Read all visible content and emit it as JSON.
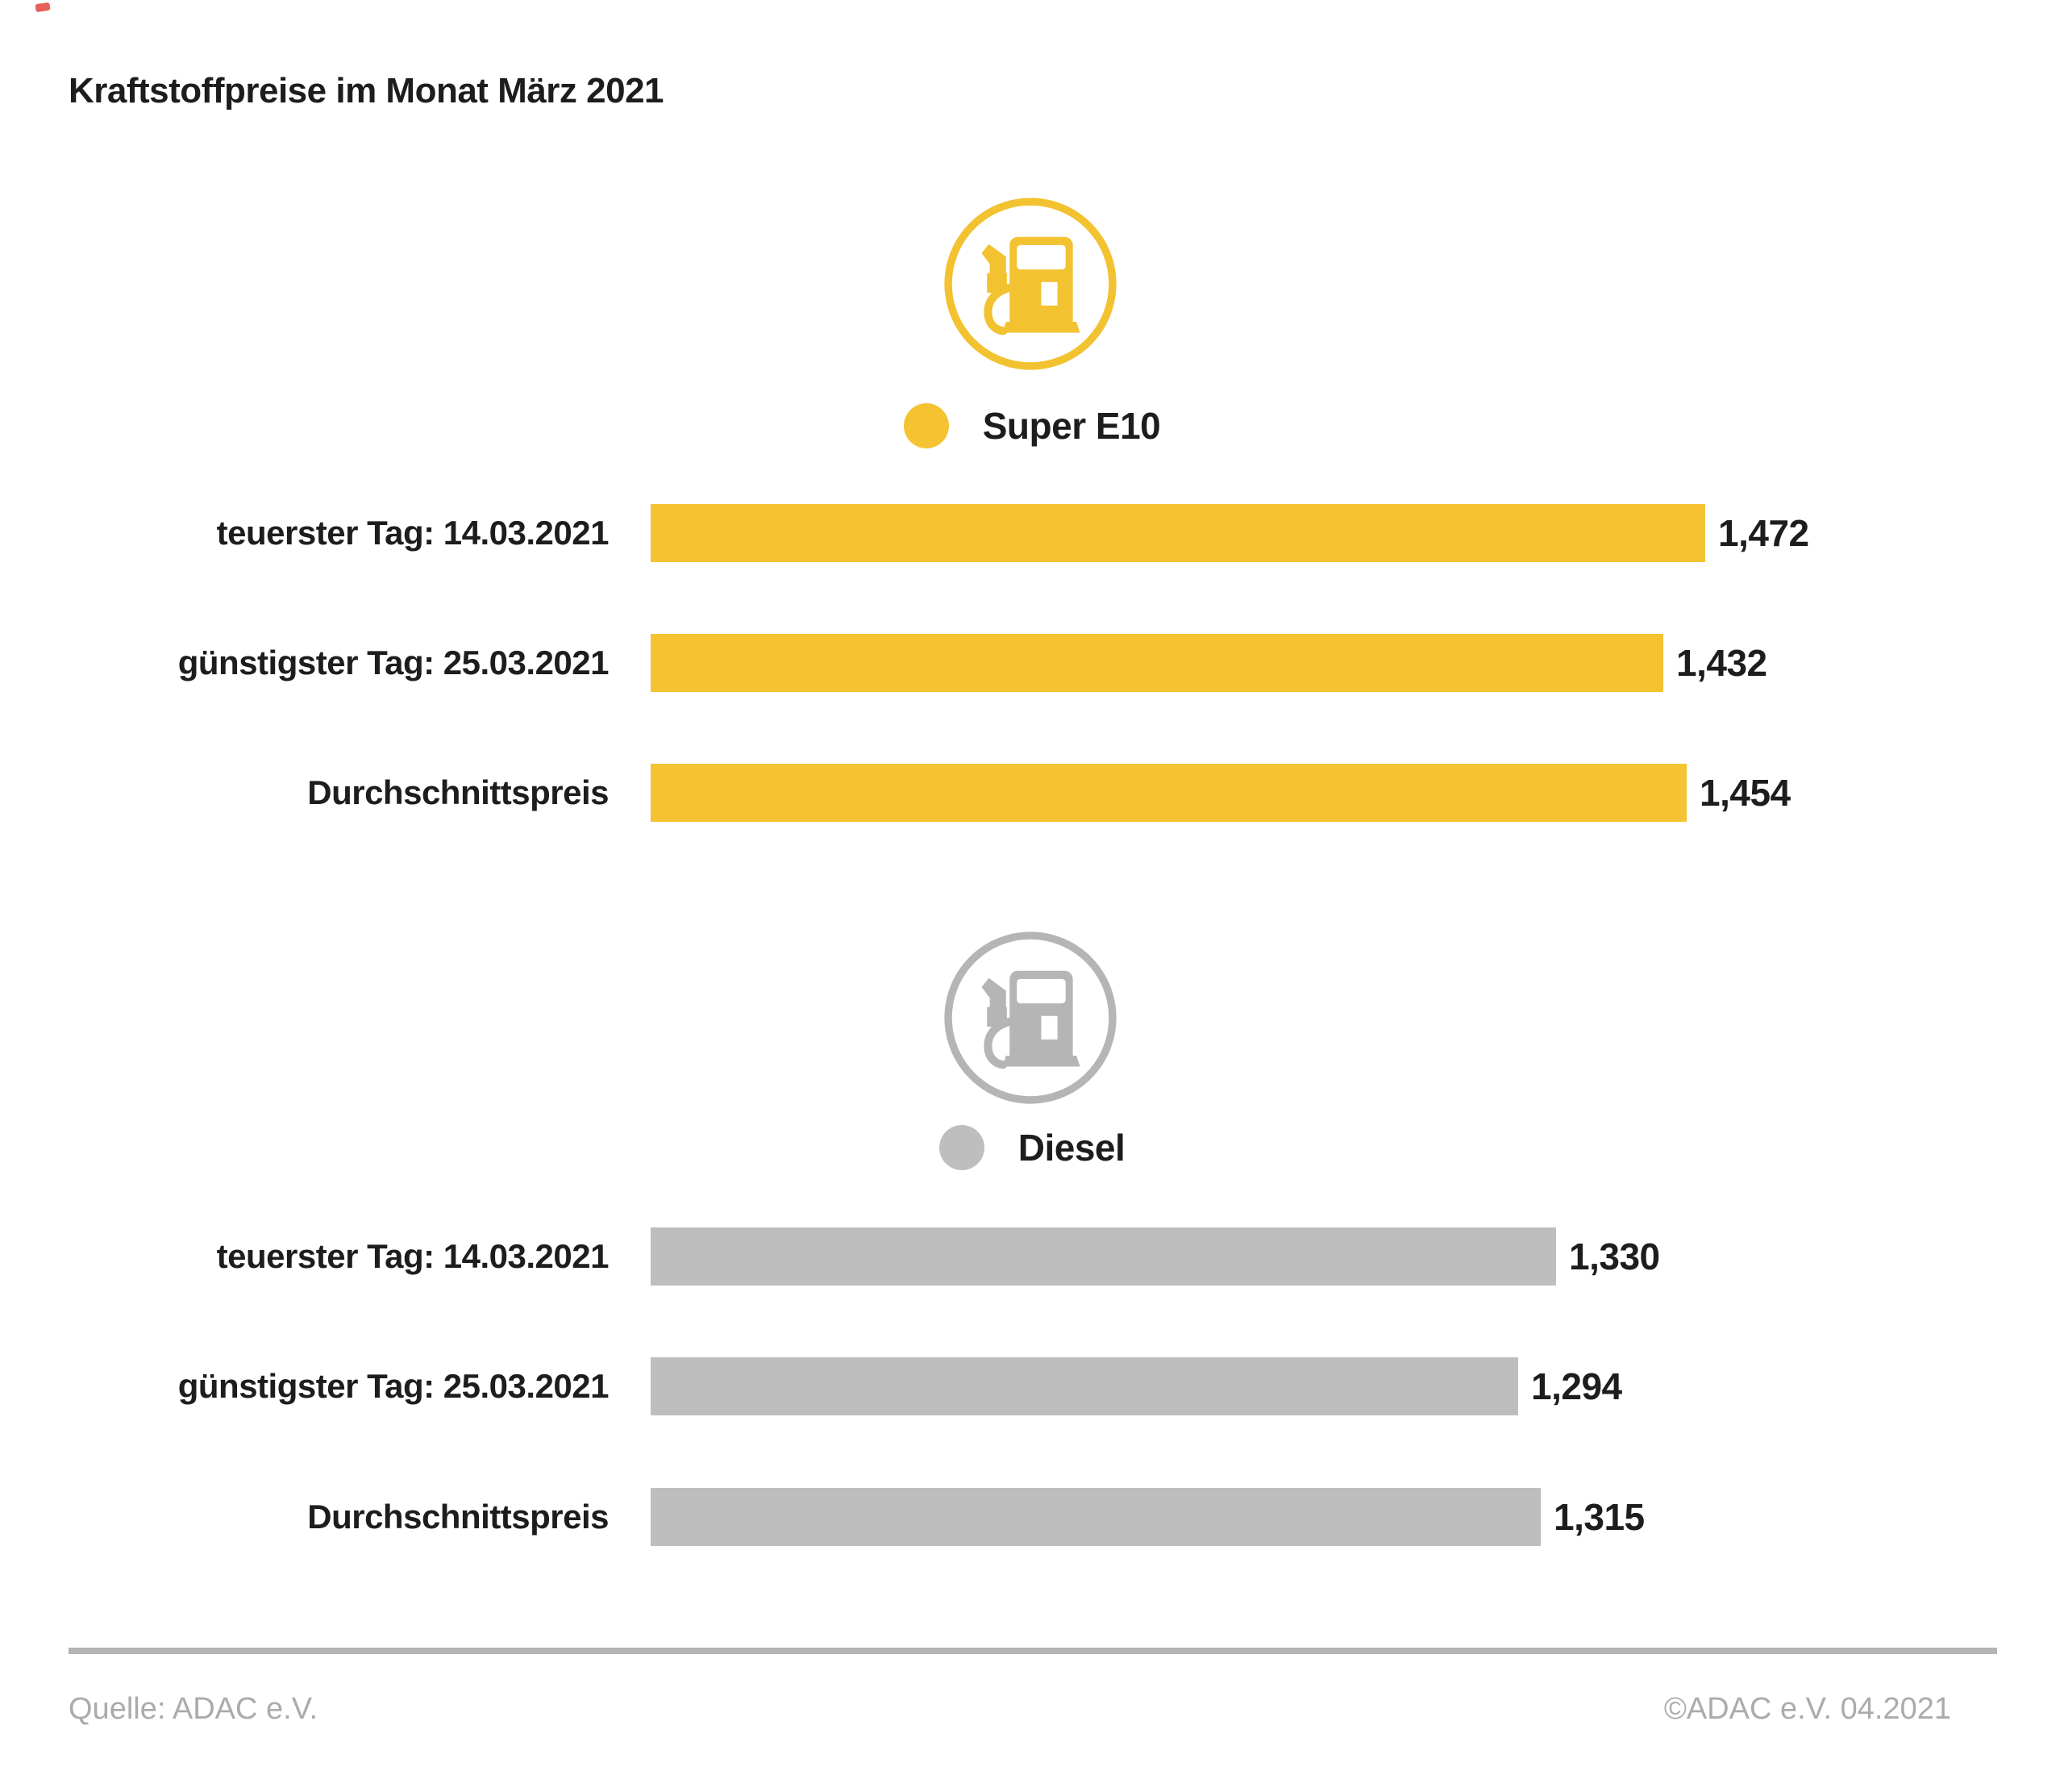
{
  "title": "Kraftstoffpreise im Monat März 2021",
  "colors": {
    "super_e10": "#F5C331",
    "diesel": "#BEBEBE",
    "text": "#1D1D1B",
    "footer_text": "#ABABAB",
    "divider": "#B4B4B4"
  },
  "legend": {
    "super_e10": "Super E10",
    "diesel": "Diesel"
  },
  "chart_data": [
    {
      "type": "bar",
      "orientation": "horizontal",
      "series_name": "Super E10",
      "categories": [
        "teuerster Tag: 14.03.2021",
        "günstigster Tag: 25.03.2021",
        "Durchschnittspreis"
      ],
      "values": [
        1.472,
        1.432,
        1.454
      ],
      "value_labels": [
        "1,472",
        "1,432",
        "1,454"
      ],
      "color": "#F5C331",
      "axis": {
        "min": 0.468,
        "max": 1.4735
      },
      "grid": false,
      "legend_position": "top"
    },
    {
      "type": "bar",
      "orientation": "horizontal",
      "series_name": "Diesel",
      "categories": [
        "teuerster Tag: 14.03.2021",
        "günstigster Tag: 25.03.2021",
        "Durchschnittspreis"
      ],
      "values": [
        1.33,
        1.294,
        1.315
      ],
      "value_labels": [
        "1,330",
        "1,294",
        "1,315"
      ],
      "color": "#BEBEBE",
      "axis": {
        "min": 0.468,
        "max": 1.4735
      },
      "grid": false,
      "legend_position": "top"
    }
  ],
  "footer": {
    "source": "Quelle: ADAC e.V.",
    "copyright": "©ADAC e.V. 04.2021"
  }
}
